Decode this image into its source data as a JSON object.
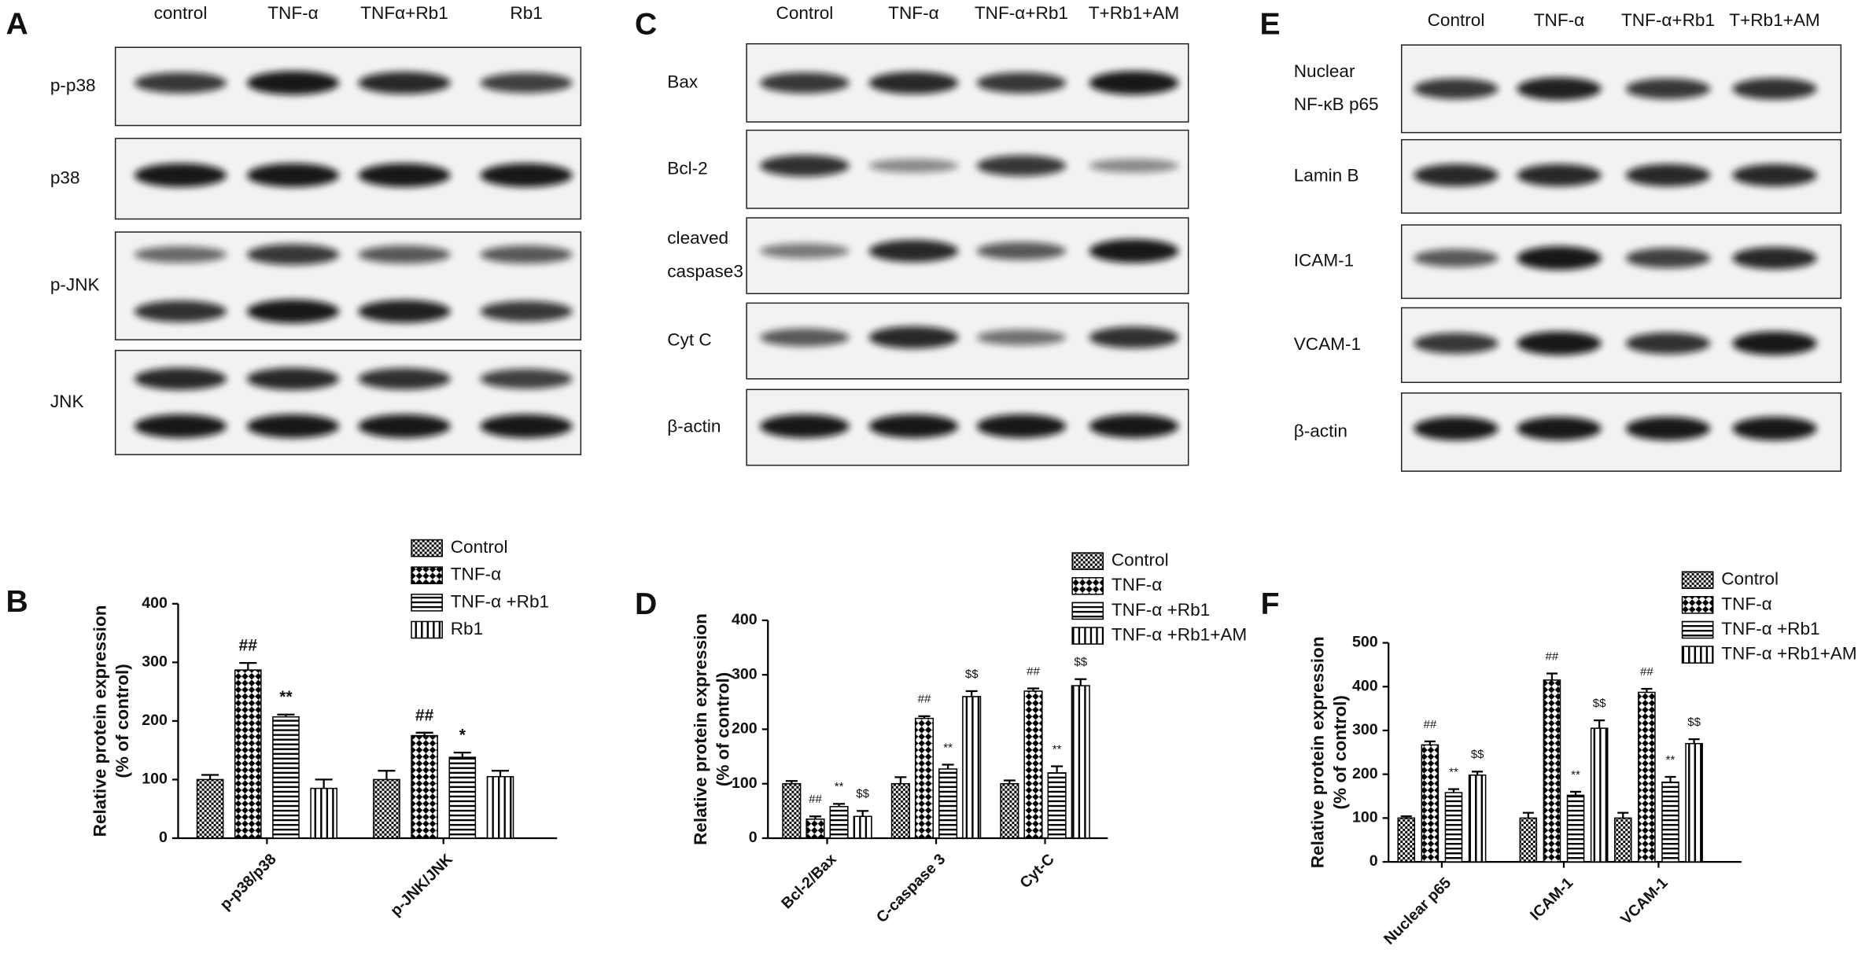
{
  "blots": [
    {
      "panel": "A",
      "columns": [
        "control",
        "TNF-α",
        "TNFα+Rb1",
        "Rb1"
      ],
      "rows": [
        [
          "p-p38"
        ],
        [
          "p38"
        ],
        [
          "p-JNK"
        ],
        [
          "JNK"
        ]
      ]
    },
    {
      "panel": "C",
      "columns": [
        "Control",
        "TNF-α",
        "TNF-α+Rb1",
        "T+Rb1+AM"
      ],
      "rows": [
        [
          "Bax"
        ],
        [
          "Bcl-2"
        ],
        [
          "cleaved",
          "caspase3"
        ],
        [
          "Cyt C"
        ],
        [
          "β-actin"
        ]
      ]
    },
    {
      "panel": "E",
      "columns": [
        "Control",
        "TNF-α",
        "TNF-α+Rb1",
        "T+Rb1+AM"
      ],
      "rows": [
        [
          "Nuclear",
          "NF-κB p65"
        ],
        [
          "Lamin B"
        ],
        [
          "ICAM-1"
        ],
        [
          "VCAM-1"
        ],
        [
          "β-actin"
        ]
      ]
    }
  ],
  "chart_data": [
    {
      "type": "bar",
      "panel": "B",
      "ylabel": [
        "Relative protein expression",
        "(% of control)"
      ],
      "categories": [
        "p-p38/p38",
        "p-JNK/JNK"
      ],
      "ylim": [
        0,
        400
      ],
      "yticks": [
        0,
        100,
        200,
        300,
        400
      ],
      "series": [
        {
          "name": "Control",
          "color": "#000000",
          "pattern": "checker-small",
          "values": [
            100,
            100
          ],
          "errors": [
            8,
            15
          ],
          "annotations": [
            null,
            null
          ]
        },
        {
          "name": "TNF-α",
          "color": "#000000",
          "pattern": "checker-large",
          "values": [
            287,
            175
          ],
          "errors": [
            12,
            5
          ],
          "annotations": [
            "##",
            "##"
          ]
        },
        {
          "name": "TNF-α +Rb1",
          "color": "#000000",
          "pattern": "hstripe",
          "values": [
            207,
            138
          ],
          "errors": [
            4,
            8
          ],
          "annotations": [
            "**",
            "*"
          ]
        },
        {
          "name": "Rb1",
          "color": "#000000",
          "pattern": "vstripe",
          "values": [
            85,
            105
          ],
          "errors": [
            15,
            10
          ],
          "annotations": [
            null,
            null
          ]
        }
      ]
    },
    {
      "type": "bar",
      "panel": "D",
      "ylabel": [
        "Relative protein expression",
        "(% of control)"
      ],
      "categories": [
        "Bcl-2/Bax",
        "C-caspase 3",
        "Cyt-C"
      ],
      "ylim": [
        0,
        400
      ],
      "yticks": [
        0,
        100,
        200,
        300,
        400
      ],
      "series": [
        {
          "name": "Control",
          "color": "#000000",
          "pattern": "checker-small",
          "values": [
            100,
            100,
            100
          ],
          "errors": [
            5,
            12,
            6
          ],
          "annotations": [
            null,
            null,
            null
          ]
        },
        {
          "name": "TNF-α",
          "color": "#000000",
          "pattern": "checker-large",
          "values": [
            35,
            220,
            270
          ],
          "errors": [
            5,
            4,
            5
          ],
          "annotations": [
            "##",
            "##",
            "##"
          ]
        },
        {
          "name": "TNF-α +Rb1",
          "color": "#000000",
          "pattern": "hstripe",
          "values": [
            58,
            127,
            120
          ],
          "errors": [
            5,
            8,
            12
          ],
          "annotations": [
            "**",
            "**",
            "**"
          ]
        },
        {
          "name": "TNF-α +Rb1+AM",
          "color": "#000000",
          "pattern": "vstripe",
          "values": [
            40,
            260,
            280
          ],
          "errors": [
            10,
            10,
            12
          ],
          "annotations": [
            "$$",
            "$$",
            "$$"
          ]
        }
      ]
    },
    {
      "type": "bar",
      "panel": "F",
      "ylabel": [
        "Relative protein expression",
        "(% of control)"
      ],
      "categories": [
        "Nuclear p65",
        "ICAM-1",
        "VCAM-1"
      ],
      "ylim": [
        0,
        500
      ],
      "yticks": [
        0,
        100,
        200,
        300,
        400,
        500
      ],
      "series": [
        {
          "name": "Control",
          "color": "#000000",
          "pattern": "checker-small",
          "values": [
            100,
            100,
            100
          ],
          "errors": [
            4,
            12,
            12
          ],
          "annotations": [
            null,
            null,
            null
          ]
        },
        {
          "name": "TNF-α",
          "color": "#000000",
          "pattern": "checker-large",
          "values": [
            267,
            415,
            387
          ],
          "errors": [
            8,
            15,
            8
          ],
          "annotations": [
            "##",
            "##",
            "##"
          ]
        },
        {
          "name": "TNF-α +Rb1",
          "color": "#000000",
          "pattern": "hstripe",
          "values": [
            158,
            152,
            182
          ],
          "errors": [
            8,
            8,
            12
          ],
          "annotations": [
            "**",
            "**",
            "**"
          ]
        },
        {
          "name": "TNF-α +Rb1+AM",
          "color": "#000000",
          "pattern": "vstripe",
          "values": [
            198,
            305,
            270
          ],
          "errors": [
            8,
            18,
            10
          ],
          "annotations": [
            "$$",
            "$$",
            "$$"
          ]
        }
      ]
    }
  ]
}
